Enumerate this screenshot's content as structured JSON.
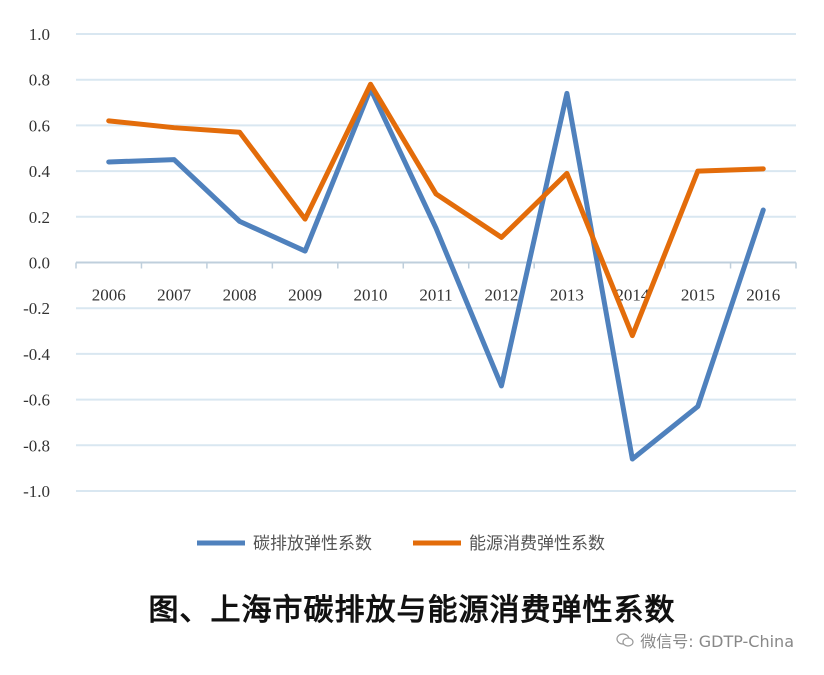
{
  "chart_data": {
    "type": "line",
    "categories": [
      "2006",
      "2007",
      "2008",
      "2009",
      "2010",
      "2011",
      "2012",
      "2013",
      "2014",
      "2015",
      "2016"
    ],
    "series": [
      {
        "name": "碳排放弹性系数",
        "color": "#4f81bd",
        "values": [
          0.44,
          0.45,
          0.18,
          0.05,
          0.76,
          0.15,
          -0.54,
          0.74,
          -0.86,
          -0.63,
          0.23
        ]
      },
      {
        "name": "能源消费弹性系数",
        "color": "#e36c0a",
        "values": [
          0.62,
          0.59,
          0.57,
          0.19,
          0.78,
          0.3,
          0.11,
          0.39,
          -0.32,
          0.4,
          0.41
        ]
      }
    ],
    "yticks": [
      "1.0",
      "0.8",
      "0.6",
      "0.4",
      "0.2",
      "0.0",
      "-0.2",
      "-0.4",
      "-0.6",
      "-0.8",
      "-1.0"
    ],
    "ylim": [
      -1.0,
      1.0
    ],
    "grid": true,
    "legend": "bottom"
  },
  "caption": "图、上海市碳排放与能源消费弹性系数",
  "watermark": "微信号: GDTP-China"
}
